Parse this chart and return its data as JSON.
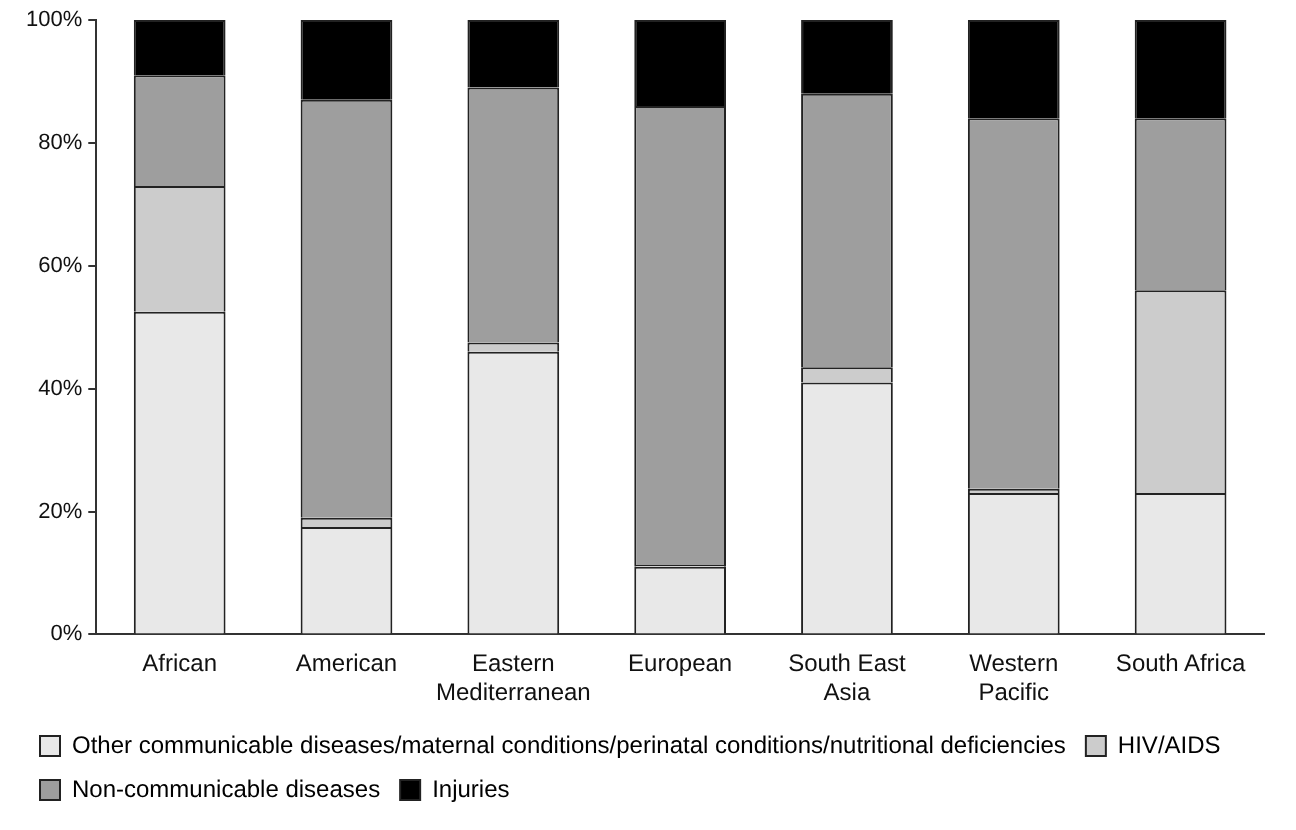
{
  "chart_data": {
    "type": "bar",
    "stacked": true,
    "categories": [
      "African",
      "American",
      "Eastern Mediterranean",
      "European",
      "South East Asia",
      "Western Pacific",
      "South Africa"
    ],
    "series": [
      {
        "name": "Other communicable diseases/maternal conditions/perinatal conditions/nutritional deficiencies",
        "color": "#e8e8e8",
        "values": [
          52.5,
          17.5,
          46,
          11,
          41,
          23,
          23
        ]
      },
      {
        "name": "HIV/AIDS",
        "color": "#cccccc",
        "values": [
          20.5,
          1.5,
          1.5,
          0.3,
          2.5,
          0.7,
          33
        ]
      },
      {
        "name": "Non-communicable diseases",
        "color": "#9e9e9e",
        "values": [
          18,
          68,
          41.5,
          74.7,
          44.5,
          60.3,
          28
        ]
      },
      {
        "name": "Injuries",
        "color": "#000000",
        "values": [
          9,
          13,
          11,
          14,
          12,
          16,
          16
        ]
      }
    ],
    "ylim": [
      0,
      100
    ],
    "yticks": [
      {
        "value": 0,
        "label": "0%"
      },
      {
        "value": 20,
        "label": "20%"
      },
      {
        "value": 40,
        "label": "40%"
      },
      {
        "value": 60,
        "label": "60%"
      },
      {
        "value": 80,
        "label": "80%"
      },
      {
        "value": 100,
        "label": "100%"
      }
    ],
    "grid": false,
    "legend": "bottom"
  }
}
